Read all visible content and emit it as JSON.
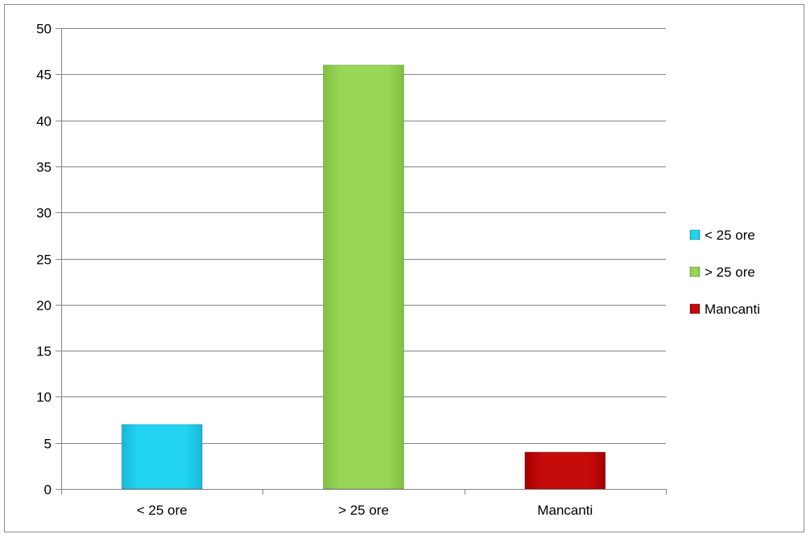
{
  "chart_data": {
    "type": "bar",
    "categories": [
      "< 25 ore",
      "> 25 ore",
      "Mancanti"
    ],
    "values": [
      7,
      46,
      4
    ],
    "colors": [
      "#1fd0f0",
      "#92d050",
      "#c00000"
    ],
    "ylim": [
      0,
      50
    ],
    "y_ticks": [
      "0",
      "5",
      "10",
      "15",
      "20",
      "25",
      "30",
      "35",
      "40",
      "45",
      "50"
    ],
    "grid": true,
    "legend": {
      "placement": "right",
      "entries": [
        "< 25 ore",
        "> 25 ore",
        "Mancanti"
      ]
    },
    "title": "",
    "xlabel": "",
    "ylabel": ""
  }
}
